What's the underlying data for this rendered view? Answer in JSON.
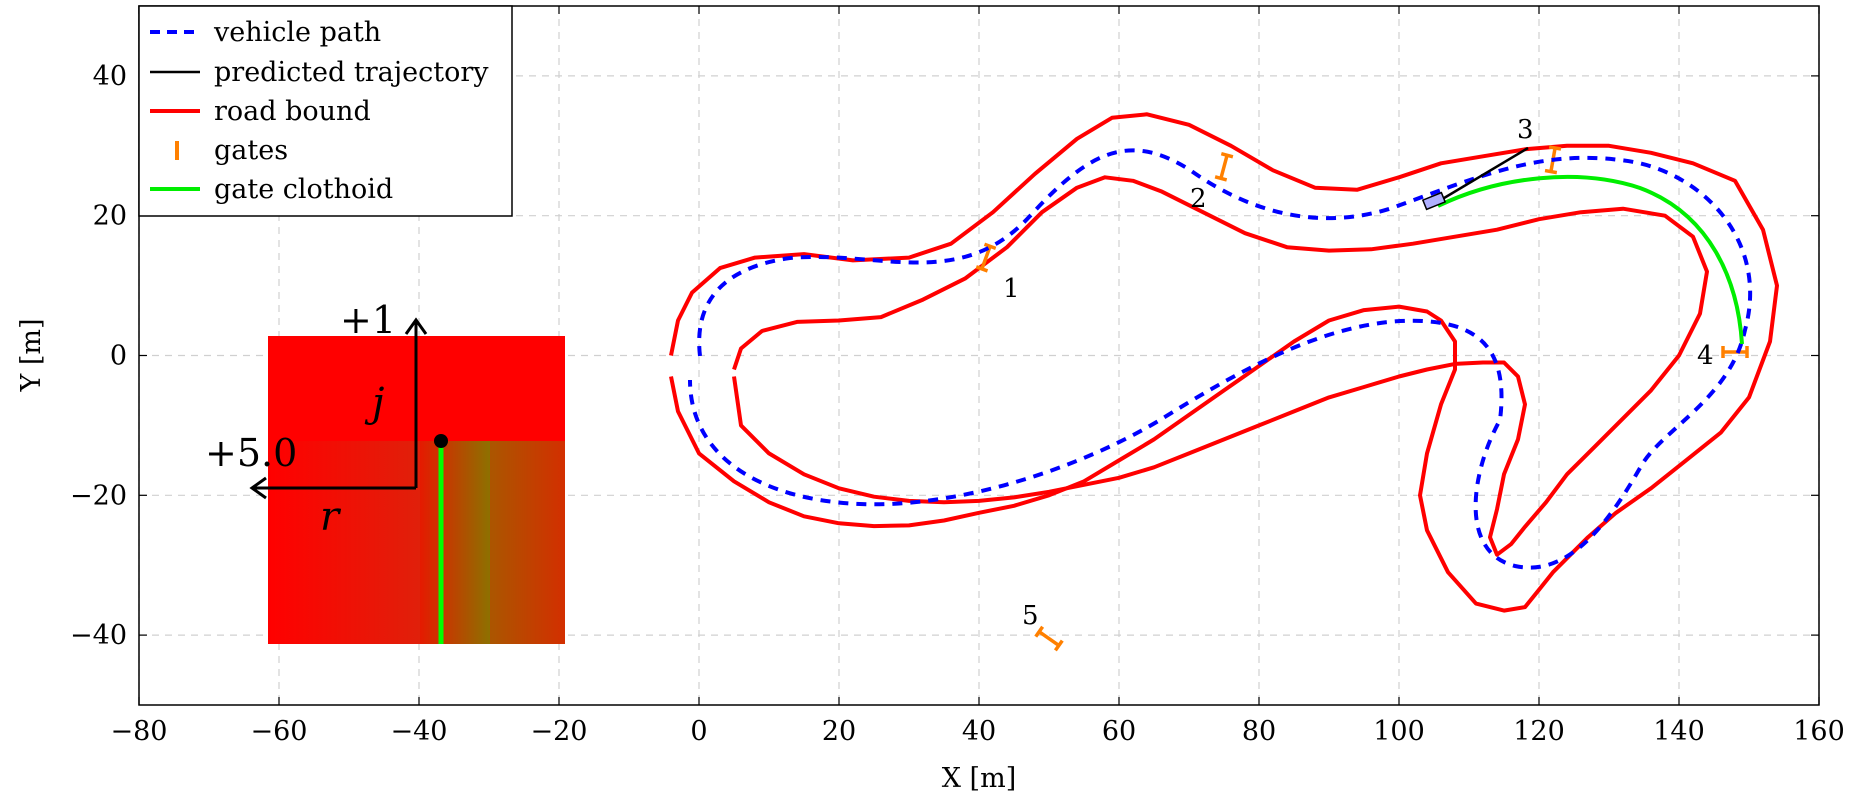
{
  "chart_data": {
    "type": "line",
    "title": "",
    "xlabel": "X [m]",
    "ylabel": "Y [m]",
    "xlim": [
      -80,
      160
    ],
    "ylim": [
      -50,
      50
    ],
    "xticks": [
      -80,
      -60,
      -40,
      -20,
      0,
      20,
      40,
      60,
      80,
      100,
      120,
      140,
      160
    ],
    "yticks": [
      -40,
      -20,
      0,
      20,
      40
    ],
    "xtick_labels": [
      "−80",
      "−60",
      "−40",
      "−20",
      "0",
      "20",
      "40",
      "60",
      "80",
      "100",
      "120",
      "140",
      "160"
    ],
    "ytick_labels": [
      "−40",
      "−20",
      "0",
      "20",
      "40"
    ],
    "grid": true,
    "legend_position": "top-left",
    "legend": [
      {
        "name": "vehicle path",
        "style": "dashed",
        "color": "#0000ff"
      },
      {
        "name": "predicted trajectory",
        "style": "solid",
        "color": "#000000"
      },
      {
        "name": "road bound",
        "style": "solid",
        "color": "#ff0000"
      },
      {
        "name": "gates",
        "style": "marker",
        "color": "#ff8000"
      },
      {
        "name": "gate clothoid",
        "style": "solid",
        "color": "#00ee00"
      }
    ],
    "series": [
      {
        "name": "road bound",
        "color": "#ff0000",
        "x": [
          -4,
          -3,
          -1,
          3,
          8,
          15,
          22,
          30,
          36,
          42,
          48,
          54,
          59,
          64,
          70,
          76,
          82,
          88,
          94,
          100,
          106,
          112,
          118,
          124,
          130,
          136,
          142,
          148,
          152,
          154,
          153,
          150,
          146,
          141,
          136,
          131,
          127,
          124,
          122,
          120,
          118,
          115,
          111,
          107,
          104,
          103,
          104,
          106,
          108,
          108,
          106,
          104,
          100,
          95,
          90,
          85,
          80,
          75,
          70,
          65,
          60,
          55,
          50,
          45,
          40,
          35,
          30,
          25,
          20,
          15,
          10,
          5,
          0,
          -3,
          -4
        ],
        "y": [
          0,
          5,
          9,
          12.5,
          14,
          14.5,
          13.6,
          14,
          16,
          20.5,
          26,
          31,
          34,
          34.5,
          33,
          30,
          26.5,
          24,
          23.7,
          25.5,
          27.5,
          28.5,
          29.5,
          30,
          30,
          29,
          27.5,
          25,
          18,
          10,
          2,
          -6,
          -11,
          -15,
          -19,
          -22.5,
          -26,
          -29,
          -31,
          -33.5,
          -36,
          -36.5,
          -35.5,
          -31,
          -25,
          -20,
          -14,
          -7,
          -2,
          2,
          5,
          6.3,
          7,
          6.5,
          5,
          2,
          -1.5,
          -5,
          -8.5,
          -12,
          -15,
          -18,
          -20,
          -21.5,
          -22.5,
          -23.6,
          -24.3,
          -24.4,
          -24,
          -23,
          -21,
          -18,
          -14,
          -8,
          -3
        ]
      },
      {
        "name": "road bound",
        "color": "#ff0000",
        "x": [
          5,
          6,
          9,
          14,
          20,
          26,
          32,
          38,
          44,
          49,
          54,
          58,
          62,
          66,
          72,
          78,
          84,
          90,
          96,
          102,
          108,
          114,
          120,
          126,
          132,
          138,
          142,
          144,
          143,
          140,
          136,
          132,
          128,
          124,
          121,
          118,
          116,
          114,
          113,
          114,
          115,
          117,
          118,
          117,
          115,
          112,
          108,
          104,
          100,
          95,
          90,
          85,
          80,
          75,
          70,
          65,
          60,
          55,
          50,
          45,
          40,
          35,
          30,
          25,
          20,
          15,
          10,
          6,
          5
        ],
        "y": [
          -2,
          1,
          3.5,
          4.8,
          5,
          5.5,
          8,
          11,
          15.5,
          20.5,
          24,
          25.5,
          25,
          23.5,
          20.5,
          17.5,
          15.5,
          15,
          15.2,
          16,
          17,
          18,
          19.5,
          20.5,
          21,
          20,
          17,
          12,
          6,
          0,
          -5,
          -9,
          -13,
          -17,
          -21,
          -24.5,
          -27,
          -28.5,
          -26,
          -22,
          -17,
          -12,
          -7,
          -3,
          -1,
          -1,
          -1.2,
          -2,
          -3,
          -4.5,
          -6,
          -8,
          -10,
          -12,
          -14,
          -16,
          -17.5,
          -18.5,
          -19.5,
          -20.3,
          -20.8,
          -21,
          -20.8,
          -20.2,
          -19,
          -17,
          -14,
          -10,
          -3
        ]
      }
    ],
    "gates": {
      "color": "#ff8000",
      "labels": [
        "1",
        "2",
        "3",
        "4",
        "5"
      ],
      "points": [
        {
          "x": 41,
          "y": 14,
          "angle_deg": -70
        },
        {
          "x": 75,
          "y": 27,
          "angle_deg": -75
        },
        {
          "x": 122,
          "y": 28,
          "angle_deg": -80
        },
        {
          "x": 148,
          "y": 0.5,
          "angle_deg": 0
        },
        {
          "x": 50,
          "y": -40.5,
          "angle_deg": 35
        }
      ]
    }
  },
  "inset": {
    "label_up": "+1",
    "label_left": "+5.0",
    "var_up": "j",
    "var_left": "r"
  }
}
